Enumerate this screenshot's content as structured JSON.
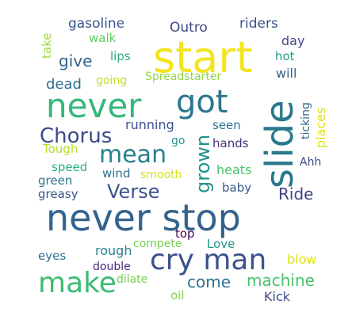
{
  "word_cloud": {
    "words": [
      {
        "text": "never stop",
        "color": "#33638d",
        "rotated": false
      },
      {
        "text": "start",
        "color": "#f3e51e",
        "rotated": false
      },
      {
        "text": "never",
        "color": "#35b779",
        "rotated": false
      },
      {
        "text": "slide",
        "color": "#29788e",
        "rotated": true
      },
      {
        "text": "got",
        "color": "#2a768e",
        "rotated": false
      },
      {
        "text": "cry man",
        "color": "#3b528b",
        "rotated": false
      },
      {
        "text": "make",
        "color": "#3dbc74",
        "rotated": false
      },
      {
        "text": "mean",
        "color": "#27808e",
        "rotated": false
      },
      {
        "text": "Chorus",
        "color": "#3e4989",
        "rotated": false
      },
      {
        "text": "grown",
        "color": "#21918c",
        "rotated": true
      },
      {
        "text": "Verse",
        "color": "#3b528b",
        "rotated": false
      },
      {
        "text": "machine",
        "color": "#4ac16d",
        "rotated": false
      },
      {
        "text": "come",
        "color": "#2c718e",
        "rotated": false
      },
      {
        "text": "Ride",
        "color": "#414487",
        "rotated": false
      },
      {
        "text": "give",
        "color": "#34618d",
        "rotated": false
      },
      {
        "text": "dead",
        "color": "#2e6e8e",
        "rotated": false
      },
      {
        "text": "gasoline",
        "color": "#39568c",
        "rotated": false
      },
      {
        "text": "Outro",
        "color": "#3f4788",
        "rotated": false
      },
      {
        "text": "riders",
        "color": "#3b528b",
        "rotated": false
      },
      {
        "text": "walk",
        "color": "#5ec962",
        "rotated": false
      },
      {
        "text": "lips",
        "color": "#26ad81",
        "rotated": false
      },
      {
        "text": "day",
        "color": "#414487",
        "rotated": false
      },
      {
        "text": "take",
        "color": "#a0da39",
        "rotated": true
      },
      {
        "text": "hot",
        "color": "#1fa088",
        "rotated": false
      },
      {
        "text": "will",
        "color": "#355f8d",
        "rotated": false
      },
      {
        "text": "going",
        "color": "#c2df23",
        "rotated": false
      },
      {
        "text": "Spreadstarter",
        "color": "#90d743",
        "rotated": false
      },
      {
        "text": "ticking",
        "color": "#31688e",
        "rotated": true
      },
      {
        "text": "places",
        "color": "#dde318",
        "rotated": true
      },
      {
        "text": "running",
        "color": "#3b528b",
        "rotated": false
      },
      {
        "text": "seen",
        "color": "#2c738e",
        "rotated": false
      },
      {
        "text": "Tough",
        "color": "#b5de2b",
        "rotated": false
      },
      {
        "text": "go",
        "color": "#1f958b",
        "rotated": false
      },
      {
        "text": "hands",
        "color": "#46327e",
        "rotated": false
      },
      {
        "text": "Ahh",
        "color": "#3e4989",
        "rotated": false
      },
      {
        "text": "speed",
        "color": "#2ab07f",
        "rotated": false
      },
      {
        "text": "wind",
        "color": "#2d708e",
        "rotated": false
      },
      {
        "text": "smooth",
        "color": "#d2e21b",
        "rotated": false
      },
      {
        "text": "heats",
        "color": "#4ac16d",
        "rotated": false
      },
      {
        "text": "green",
        "color": "#2a788e",
        "rotated": false
      },
      {
        "text": "greasy",
        "color": "#3b528b",
        "rotated": false
      },
      {
        "text": "baby",
        "color": "#38598c",
        "rotated": false
      },
      {
        "text": "top",
        "color": "#450457",
        "rotated": false
      },
      {
        "text": "compete",
        "color": "#7ad151",
        "rotated": false
      },
      {
        "text": "Love",
        "color": "#21918c",
        "rotated": false
      },
      {
        "text": "rough",
        "color": "#26828e",
        "rotated": false
      },
      {
        "text": "eyes",
        "color": "#2c718e",
        "rotated": false
      },
      {
        "text": "double",
        "color": "#482878",
        "rotated": false
      },
      {
        "text": "dilate",
        "color": "#75d054",
        "rotated": false
      },
      {
        "text": "blow",
        "color": "#dde318",
        "rotated": false
      },
      {
        "text": "oil",
        "color": "#84d44b",
        "rotated": false
      },
      {
        "text": "Kick",
        "color": "#3e4a89",
        "rotated": false
      }
    ]
  }
}
